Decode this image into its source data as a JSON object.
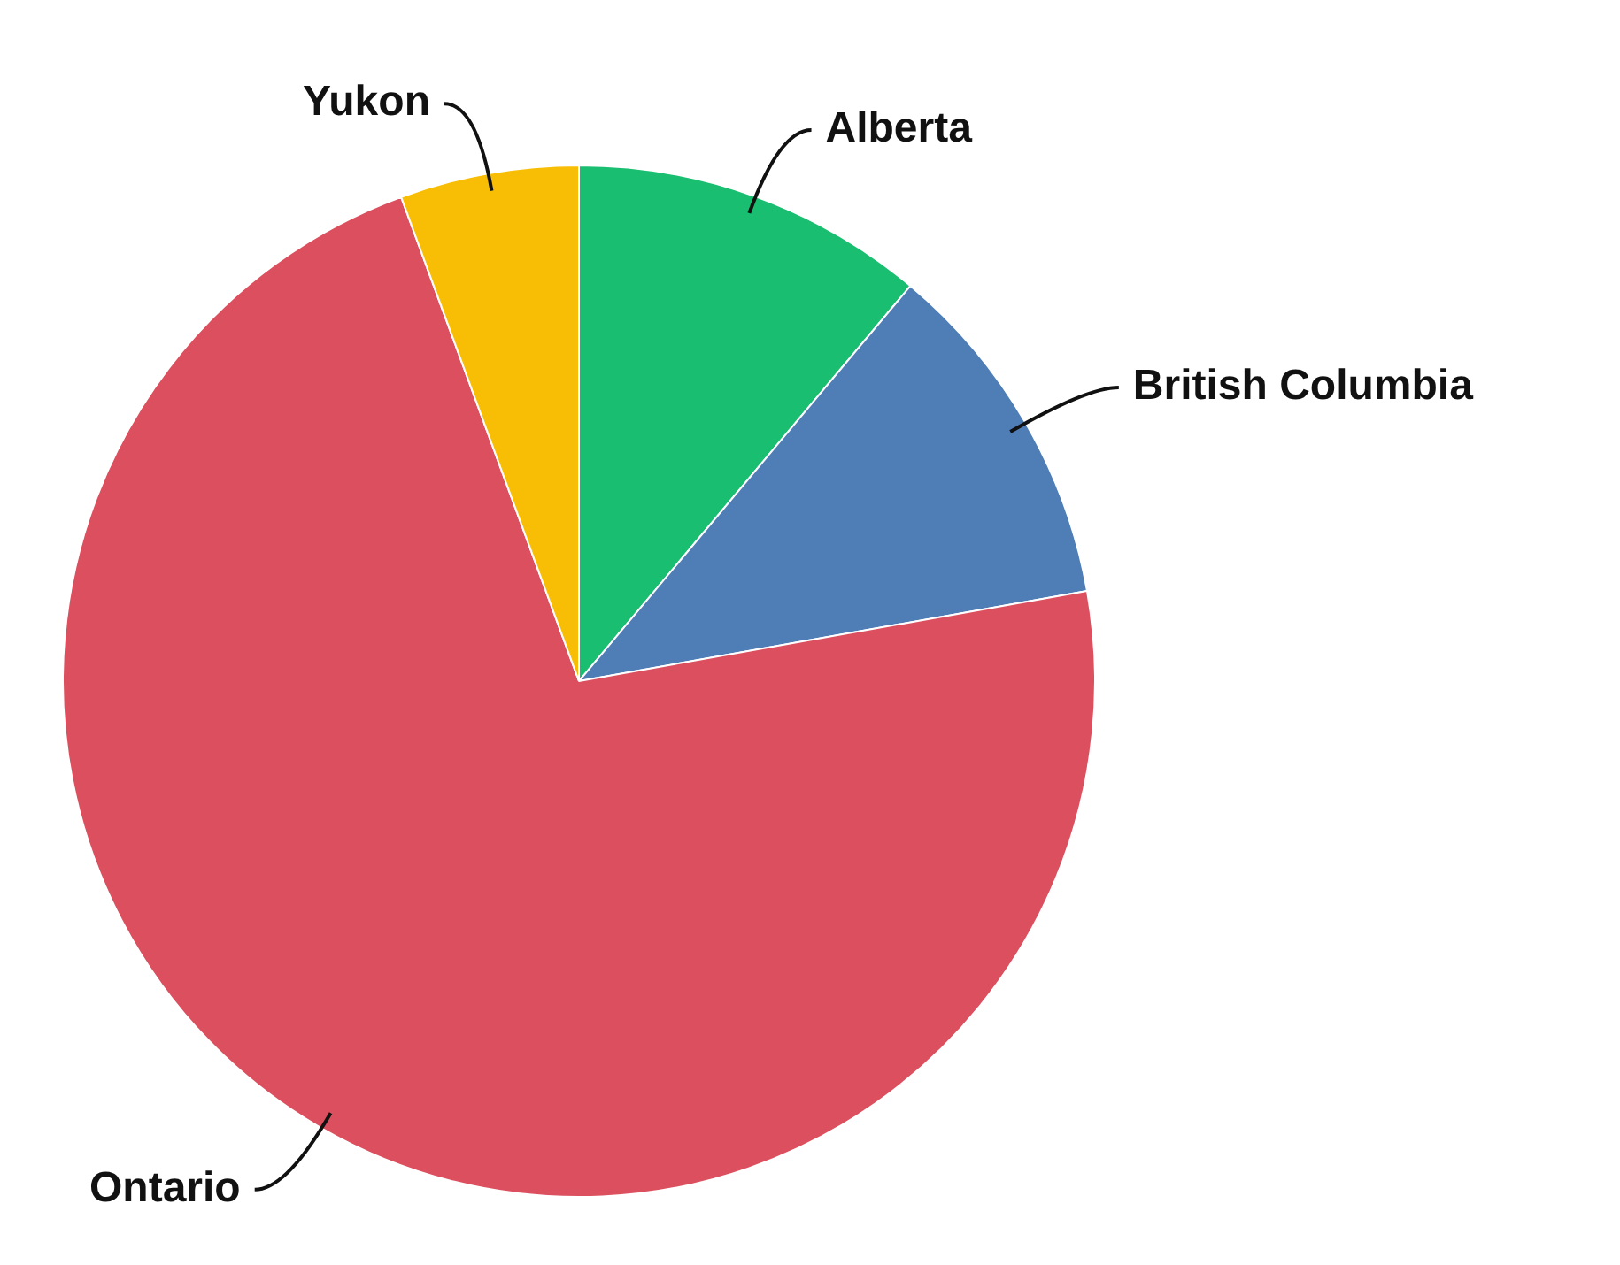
{
  "chart_data": {
    "type": "pie",
    "categories": [
      "Alberta",
      "British Columbia",
      "Ontario",
      "Yukon"
    ],
    "values": [
      11.1,
      11.1,
      72.2,
      5.6
    ],
    "colors": [
      "#19be70",
      "#4f7db5",
      "#db4f5e",
      "#f8be06"
    ],
    "legend": false
  }
}
